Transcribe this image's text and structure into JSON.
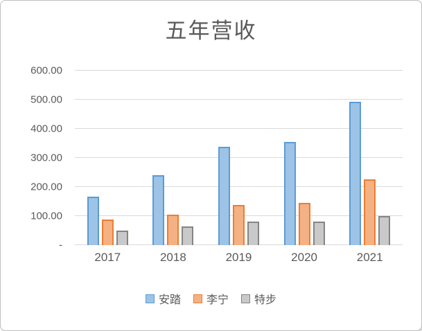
{
  "chart_data": {
    "type": "bar",
    "title": "五年营收",
    "categories": [
      "2017",
      "2018",
      "2019",
      "2020",
      "2021"
    ],
    "series": [
      {
        "name": "安踏",
        "values": [
          167,
          241,
          339,
          355,
          493
        ],
        "fill": "#9DC3E6",
        "border": "#5B9BD5"
      },
      {
        "name": "李宁",
        "values": [
          89,
          105,
          139,
          145,
          226
        ],
        "fill": "#F4B183",
        "border": "#ED7D31"
      },
      {
        "name": "特步",
        "values": [
          51,
          64,
          82,
          82,
          100
        ],
        "fill": "#C9C9C9",
        "border": "#848484"
      }
    ],
    "xlabel": "",
    "ylabel": "",
    "ylim": [
      0,
      600
    ],
    "ytick_step": 100,
    "ytick_labels": [
      "600.00",
      "500.00",
      "400.00",
      "300.00",
      "200.00",
      "100.00",
      "-"
    ],
    "grid": true,
    "gridline_color": "#D9D9D9",
    "text_color": "#595959",
    "legend_position": "bottom"
  }
}
